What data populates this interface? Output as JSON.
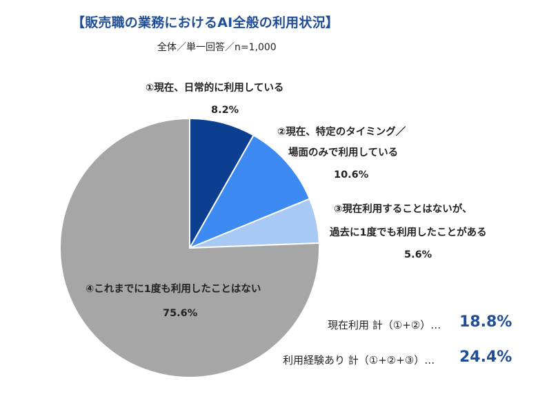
{
  "chart_data": {
    "type": "pie",
    "title": "【販売職の業務におけるAI全般の利用状況】",
    "subtitle": "全体／単一回答／n=1,000",
    "slices": [
      {
        "label_lines": [
          "①現在、日常的に利用している"
        ],
        "value": 8.2,
        "value_label": "8.2%",
        "color": "#0d3f91"
      },
      {
        "label_lines": [
          "②現在、特定のタイミング／",
          "場面のみで利用している"
        ],
        "value": 10.6,
        "value_label": "10.6%",
        "color": "#3d8bf2"
      },
      {
        "label_lines": [
          "③現在利用することはないが、",
          "過去に1度でも利用したことがある"
        ],
        "value": 5.6,
        "value_label": "5.6%",
        "color": "#a9c9f5"
      },
      {
        "label_lines": [
          "④これまでに1度も利用したことはない"
        ],
        "value": 75.6,
        "value_label": "75.6%",
        "color": "#a6a6a6"
      }
    ],
    "summary": [
      {
        "label": "現在利用 計（①+②）…",
        "value": "18.8%"
      },
      {
        "label": "利用経験あり 計（①+②+③）…",
        "value": "24.4%"
      }
    ]
  }
}
